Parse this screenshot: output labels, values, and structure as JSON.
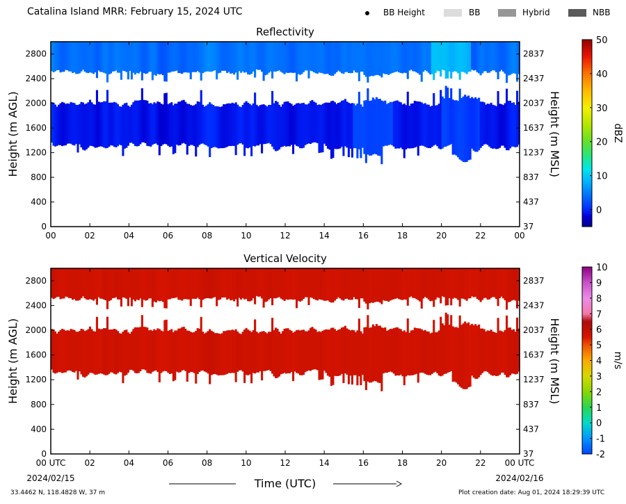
{
  "figure_title": "Catalina Island MRR:  February 15, 2024 UTC",
  "legend": [
    {
      "label": "BB Height",
      "marker": "dot",
      "color": "#000000"
    },
    {
      "label": "BB",
      "marker": "swatch",
      "color": "#dcdcdc"
    },
    {
      "label": "Hybrid",
      "marker": "swatch",
      "color": "#969696"
    },
    {
      "label": "NBB",
      "marker": "swatch",
      "color": "#5a5a5a"
    }
  ],
  "footer": {
    "location": "33.4462 N, 118.4828 W, 37 m",
    "created": "Plot creation date: Aug 01, 2024 18:29:39 UTC"
  },
  "xaxis": {
    "label": "Time (UTC)",
    "ticks": [
      0,
      2,
      4,
      6,
      8,
      10,
      12,
      14,
      16,
      18,
      20,
      22,
      24
    ],
    "tick_labels_top": [
      "00",
      "02",
      "04",
      "06",
      "08",
      "10",
      "12",
      "14",
      "16",
      "18",
      "20",
      "22",
      "00"
    ],
    "tick_labels_bottom": [
      "00 UTC",
      "02",
      "04",
      "06",
      "08",
      "10",
      "12",
      "14",
      "16",
      "18",
      "20",
      "22",
      "00 UTC"
    ],
    "start_date": "2024/02/15",
    "end_date": "2024/02/16"
  },
  "chart_data": [
    {
      "type": "heatmap",
      "title": "Reflectivity",
      "ylabel": "Height (m AGL)",
      "ylabel_right": "Height (m MSL)",
      "xlim": [
        0,
        24
      ],
      "ylim": [
        0,
        3000
      ],
      "yticks": [
        0,
        400,
        800,
        1200,
        1600,
        2000,
        2400,
        2800
      ],
      "yticks_right_labels": [
        "37",
        "437",
        "837",
        "1237",
        "1637",
        "2037",
        "2437",
        "2837"
      ],
      "colorbar": {
        "label": "dBZ",
        "min": -5,
        "max": 50,
        "ticks": [
          0,
          10,
          20,
          30,
          40,
          50
        ]
      },
      "echo_layers": [
        {
          "bottom_m": 2500,
          "top_m": 3000,
          "dominant_value": 4
        },
        {
          "bottom_m": 1300,
          "top_m": 2000,
          "dominant_value": -1
        }
      ]
    },
    {
      "type": "heatmap",
      "title": "Vertical Velocity",
      "ylabel": "Height (m AGL)",
      "ylabel_right": "Height (m MSL)",
      "xlim": [
        0,
        24
      ],
      "ylim": [
        0,
        3000
      ],
      "yticks": [
        0,
        400,
        800,
        1200,
        1600,
        2000,
        2400,
        2800
      ],
      "yticks_right_labels": [
        "37",
        "437",
        "837",
        "1237",
        "1637",
        "2037",
        "2437",
        "2837"
      ],
      "colorbar": {
        "label": "m/s",
        "min": -2,
        "max": 10,
        "ticks": [
          -2,
          -1,
          0,
          1,
          2,
          3,
          4,
          5,
          6,
          7,
          8,
          9,
          10
        ]
      },
      "echo_layers": [
        {
          "bottom_m": 2500,
          "top_m": 3000,
          "dominant_value": 5.7
        },
        {
          "bottom_m": 1300,
          "top_m": 2000,
          "dominant_value": 5.7
        }
      ]
    }
  ]
}
